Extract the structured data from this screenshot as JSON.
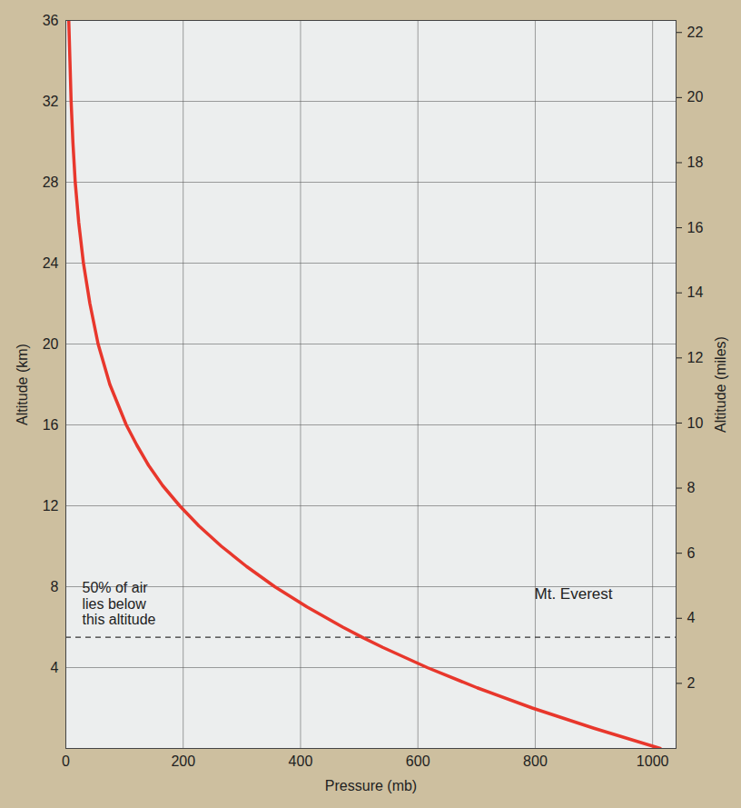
{
  "chart_data": {
    "type": "line",
    "x": [
      1013,
      900,
      795,
      701,
      616,
      540,
      505,
      472,
      411,
      356,
      308,
      265,
      227,
      194,
      165,
      141,
      121,
      103,
      75,
      55,
      41,
      30,
      22,
      16,
      12,
      9,
      7,
      5
    ],
    "values": [
      0,
      1,
      2,
      3,
      4,
      5,
      5.5,
      6,
      7,
      8,
      9,
      10,
      11,
      12,
      13,
      14,
      15,
      16,
      18,
      20,
      22,
      24,
      26,
      28,
      30,
      32,
      34,
      36
    ],
    "color": "#e8372c",
    "xlabel": "Pressure (mb)",
    "ylabel": "Altitude (km)",
    "y2label": "Altitude (miles)",
    "xlim": [
      0,
      1040
    ],
    "xticks": [
      0,
      200,
      400,
      600,
      800,
      1000
    ],
    "ylim": [
      0,
      36
    ],
    "yticks": [
      4,
      8,
      12,
      16,
      20,
      24,
      28,
      32,
      36
    ],
    "y2lim": [
      0,
      22.37
    ],
    "y2ticks": [
      2,
      4,
      6,
      8,
      10,
      12,
      14,
      16,
      18,
      20,
      22
    ],
    "grid": true,
    "annotations": [
      {
        "text": "50% of air\nlies below\nthis altitude",
        "y": 5.5,
        "line_style": "dashed"
      },
      {
        "text": "Mt. Everest"
      }
    ]
  }
}
